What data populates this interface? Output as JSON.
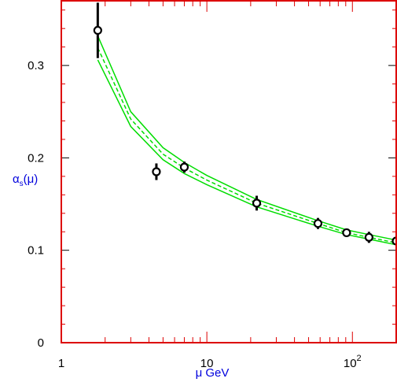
{
  "chart_data": {
    "type": "scatter",
    "xlabel": "μ GeV",
    "ylabel_main": "α",
    "ylabel_sub": "s",
    "ylabel_tail": "(μ)",
    "xscale": "log",
    "xlim": [
      1,
      200
    ],
    "ylim": [
      0,
      0.37
    ],
    "x_tick_labels": [
      {
        "value": 1,
        "base": "1",
        "exp": ""
      },
      {
        "value": 10,
        "base": "10",
        "exp": ""
      },
      {
        "value": 100,
        "base": "10",
        "exp": "2"
      }
    ],
    "y_tick_labels": [
      {
        "value": 0,
        "text": "0"
      },
      {
        "value": 0.1,
        "text": "0.1"
      },
      {
        "value": 0.2,
        "text": "0.2"
      },
      {
        "value": 0.3,
        "text": "0.3"
      }
    ],
    "grid": false,
    "frame_color": "#dd0000",
    "band_color": "#00dd00",
    "marker_color": "#000000",
    "points": [
      {
        "x": 1.78,
        "y": 0.338,
        "err": 0.03
      },
      {
        "x": 4.5,
        "y": 0.185,
        "err": 0.009
      },
      {
        "x": 7.0,
        "y": 0.19,
        "err": 0.006
      },
      {
        "x": 22.0,
        "y": 0.151,
        "err": 0.008
      },
      {
        "x": 58.0,
        "y": 0.129,
        "err": 0.006
      },
      {
        "x": 91.2,
        "y": 0.119,
        "err": 0.003
      },
      {
        "x": 130.0,
        "y": 0.114,
        "err": 0.006
      },
      {
        "x": 200.0,
        "y": 0.11,
        "err": 0.004
      }
    ],
    "curves": [
      {
        "role": "upper",
        "style": "solid",
        "x": [
          1.78,
          3,
          5,
          7,
          10,
          22,
          58,
          91.2,
          130,
          200
        ],
        "y": [
          0.332,
          0.25,
          0.211,
          0.195,
          0.181,
          0.155,
          0.132,
          0.122,
          0.117,
          0.111
        ]
      },
      {
        "role": "central",
        "style": "dashed",
        "x": [
          1.78,
          3,
          5,
          7,
          10,
          22,
          58,
          91.2,
          130,
          200
        ],
        "y": [
          0.319,
          0.242,
          0.204,
          0.189,
          0.176,
          0.151,
          0.129,
          0.119,
          0.114,
          0.108
        ]
      },
      {
        "role": "lower",
        "style": "solid",
        "x": [
          1.78,
          3,
          5,
          7,
          10,
          22,
          58,
          91.2,
          130,
          200
        ],
        "y": [
          0.306,
          0.234,
          0.198,
          0.183,
          0.171,
          0.147,
          0.126,
          0.117,
          0.112,
          0.106
        ]
      }
    ]
  }
}
